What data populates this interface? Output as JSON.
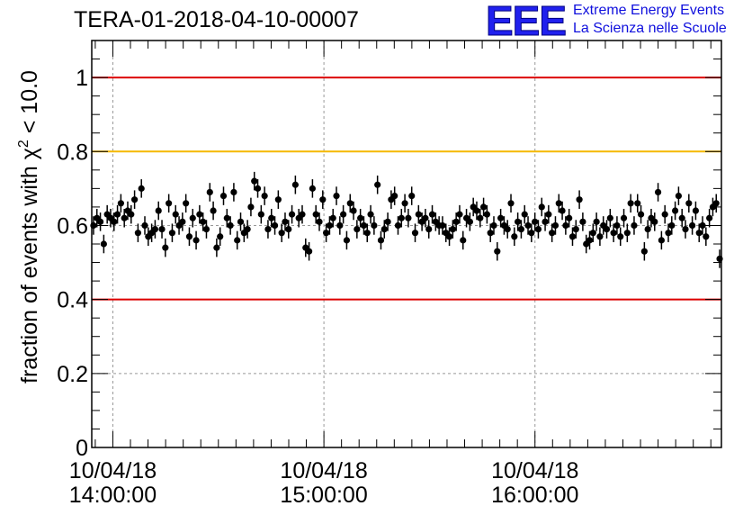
{
  "header": {
    "title": "TERA-01-2018-04-10-00007",
    "logo_text": "EEE",
    "logo_line1": "Extreme Energy Events",
    "logo_line2": "La Scienza nelle Scuole"
  },
  "colors": {
    "upper_limit_line": "#dd0000",
    "lower_limit_line": "#dd0000",
    "warning_line": "#f5b800",
    "points": "#000000",
    "logo": "#2020ee"
  },
  "chart_data": {
    "type": "scatter",
    "title": "TERA-01-2018-04-10-00007",
    "ylabel": "fraction of events with χ² < 10.0",
    "ylabel_parts": {
      "text": "fraction of events with χ",
      "superscript": "2",
      "tail": " < 10.0"
    },
    "ylim": [
      0,
      1.1
    ],
    "x_range_minutes": [
      -6,
      173
    ],
    "y_ticks": [
      "0",
      "0.2",
      "0.4",
      "0.6",
      "0.8",
      "1"
    ],
    "y_tick_values": [
      0,
      0.2,
      0.4,
      0.6,
      0.8,
      1
    ],
    "x_ticks": [
      {
        "minutes": 0,
        "date": "10/04/18",
        "time": "14:00:00"
      },
      {
        "minutes": 60,
        "date": "10/04/18",
        "time": "15:00:00"
      },
      {
        "minutes": 120,
        "date": "10/04/18",
        "time": "16:00:00"
      }
    ],
    "grid": true,
    "reference_lines": [
      {
        "y": 1.0,
        "color": "#dd0000"
      },
      {
        "y": 0.8,
        "color": "#f5b800"
      },
      {
        "y": 0.4,
        "color": "#dd0000"
      }
    ],
    "error_bar": 0.025,
    "y": [
      0.6,
      0.62,
      0.61,
      0.55,
      0.63,
      0.62,
      0.61,
      0.63,
      0.66,
      0.62,
      0.64,
      0.63,
      0.67,
      0.58,
      0.7,
      0.6,
      0.57,
      0.58,
      0.59,
      0.64,
      0.59,
      0.54,
      0.66,
      0.58,
      0.63,
      0.6,
      0.61,
      0.66,
      0.57,
      0.62,
      0.56,
      0.63,
      0.61,
      0.59,
      0.69,
      0.64,
      0.54,
      0.57,
      0.68,
      0.62,
      0.6,
      0.69,
      0.56,
      0.61,
      0.58,
      0.59,
      0.65,
      0.72,
      0.7,
      0.63,
      0.68,
      0.59,
      0.62,
      0.6,
      0.67,
      0.58,
      0.61,
      0.59,
      0.63,
      0.71,
      0.62,
      0.63,
      0.54,
      0.53,
      0.7,
      0.63,
      0.61,
      0.67,
      0.58,
      0.6,
      0.62,
      0.68,
      0.6,
      0.63,
      0.56,
      0.66,
      0.64,
      0.59,
      0.62,
      0.6,
      0.58,
      0.63,
      0.6,
      0.71,
      0.56,
      0.59,
      0.61,
      0.67,
      0.68,
      0.6,
      0.62,
      0.66,
      0.62,
      0.68,
      0.58,
      0.63,
      0.61,
      0.62,
      0.59,
      0.63,
      0.61,
      0.6,
      0.6,
      0.58,
      0.57,
      0.59,
      0.61,
      0.63,
      0.56,
      0.62,
      0.61,
      0.65,
      0.64,
      0.62,
      0.65,
      0.63,
      0.58,
      0.6,
      0.53,
      0.62,
      0.6,
      0.59,
      0.66,
      0.57,
      0.61,
      0.59,
      0.63,
      0.6,
      0.58,
      0.61,
      0.59,
      0.65,
      0.61,
      0.63,
      0.58,
      0.6,
      0.66,
      0.64,
      0.6,
      0.62,
      0.57,
      0.59,
      0.67,
      0.61,
      0.55,
      0.56,
      0.58,
      0.61,
      0.57,
      0.6,
      0.59,
      0.62,
      0.58,
      0.6,
      0.57,
      0.62,
      0.58,
      0.66,
      0.6,
      0.66,
      0.63,
      0.53,
      0.59,
      0.62,
      0.61,
      0.69,
      0.56,
      0.63,
      0.58,
      0.6,
      0.64,
      0.68,
      0.62,
      0.59,
      0.66,
      0.6,
      0.64,
      0.58,
      0.6,
      0.57,
      0.62,
      0.65,
      0.66,
      0.51
    ]
  }
}
